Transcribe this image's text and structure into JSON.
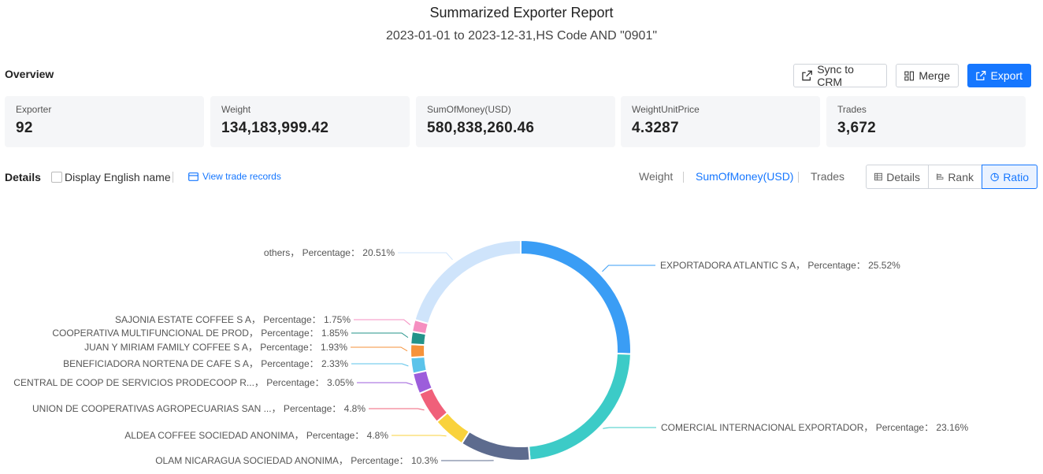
{
  "header": {
    "title": "Summarized Exporter Report",
    "subtitle": "2023-01-01 to 2023-12-31,HS Code AND \"0901\""
  },
  "overview": {
    "label": "Overview",
    "buttons": {
      "sync": "Sync to CRM",
      "merge": "Merge",
      "export": "Export"
    },
    "stats": [
      {
        "label": "Exporter",
        "value": "92"
      },
      {
        "label": "Weight",
        "value": "134,183,999.42"
      },
      {
        "label": "SumOfMoney(USD)",
        "value": "580,838,260.46"
      },
      {
        "label": "WeightUnitPrice",
        "value": "4.3287"
      },
      {
        "label": "Trades",
        "value": "3,672"
      }
    ]
  },
  "details": {
    "label": "Details",
    "checkbox_label": "Display English name",
    "link": "View trade records",
    "metric_tabs": [
      "Weight",
      "SumOfMoney(USD)",
      "Trades"
    ],
    "active_metric": "SumOfMoney(USD)",
    "view_buttons": [
      "Details",
      "Rank",
      "Ratio"
    ],
    "active_view": "Ratio"
  },
  "colors": {
    "accent": "#1677ff"
  },
  "chart_data": {
    "type": "pie",
    "style": "donut",
    "label_prefix": "Percentage",
    "slices": [
      {
        "name": "EXPORTADORA ATLANTIC S A",
        "value": 25.52,
        "label": "EXPORTADORA ATLANTIC S A， Percentage： 25.52%",
        "color": "#3a9df5"
      },
      {
        "name": "COMERCIAL INTERNACIONAL EXPORTADOR",
        "value": 23.16,
        "label": "COMERCIAL INTERNACIONAL EXPORTADOR， Percentage： 23.16%",
        "color": "#3ccbc7"
      },
      {
        "name": "OLAM NICARAGUA SOCIEDAD ANONIMA",
        "value": 10.3,
        "label": "OLAM NICARAGUA SOCIEDAD ANONIMA， Percentage： 10.3%",
        "color": "#5d6b8e"
      },
      {
        "name": "ALDEA COFFEE SOCIEDAD ANONIMA",
        "value": 4.8,
        "label": "ALDEA COFFEE SOCIEDAD ANONIMA， Percentage： 4.8%",
        "color": "#f9d23c"
      },
      {
        "name": "UNION DE COOPERATIVAS AGROPECUARIAS SAN ...",
        "value": 4.8,
        "label": "UNION DE COOPERATIVAS AGROPECUARIAS SAN ...， Percentage： 4.8%",
        "color": "#f0607a"
      },
      {
        "name": "CENTRAL DE COOP DE SERVICIOS PRODECOOP R...",
        "value": 3.05,
        "label": "CENTRAL DE COOP DE SERVICIOS PRODECOOP R...， Percentage： 3.05%",
        "color": "#9c5ddb"
      },
      {
        "name": "BENEFICIADORA NORTENA DE CAFE S A",
        "value": 2.33,
        "label": "BENEFICIADORA NORTENA DE CAFE S A， Percentage： 2.33%",
        "color": "#5bc3ea"
      },
      {
        "name": "JUAN Y MIRIAM FAMILY COFFEE S A",
        "value": 1.93,
        "label": "JUAN Y MIRIAM FAMILY COFFEE S A， Percentage： 1.93%",
        "color": "#f6923a"
      },
      {
        "name": "COOPERATIVA MULTIFUNCIONAL DE PROD",
        "value": 1.85,
        "label": "COOPERATIVA MULTIFUNCIONAL DE PROD， Percentage： 1.85%",
        "color": "#23938a"
      },
      {
        "name": "SAJONIA ESTATE COFFEE S A",
        "value": 1.75,
        "label": "SAJONIA ESTATE COFFEE S A， Percentage： 1.75%",
        "color": "#f58fc0"
      },
      {
        "name": "others",
        "value": 20.51,
        "label": "others， Percentage： 20.51%",
        "color": "#cfe4fb"
      }
    ]
  }
}
